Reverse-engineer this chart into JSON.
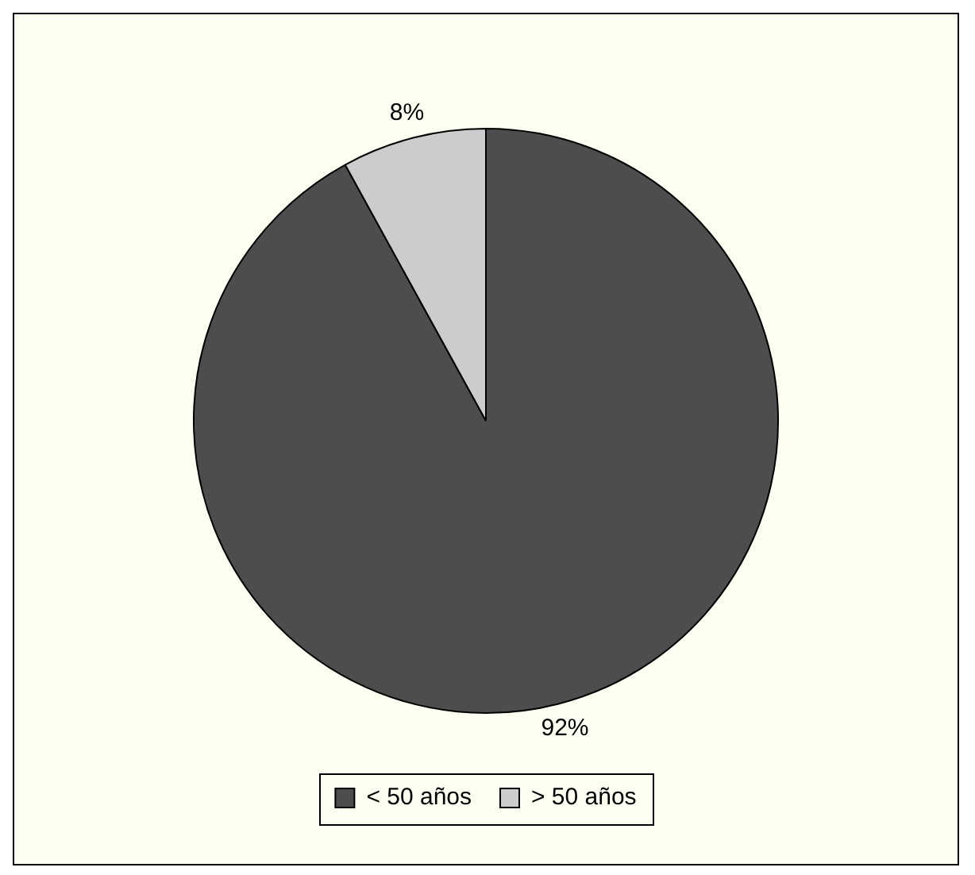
{
  "chart_data": {
    "type": "pie",
    "categories": [
      "< 50 años",
      "> 50 años"
    ],
    "values": [
      92,
      8
    ],
    "colors": [
      "#4d4d4d",
      "#cccccc"
    ],
    "value_labels": [
      "92%",
      "8%"
    ],
    "legend": "bottom"
  }
}
